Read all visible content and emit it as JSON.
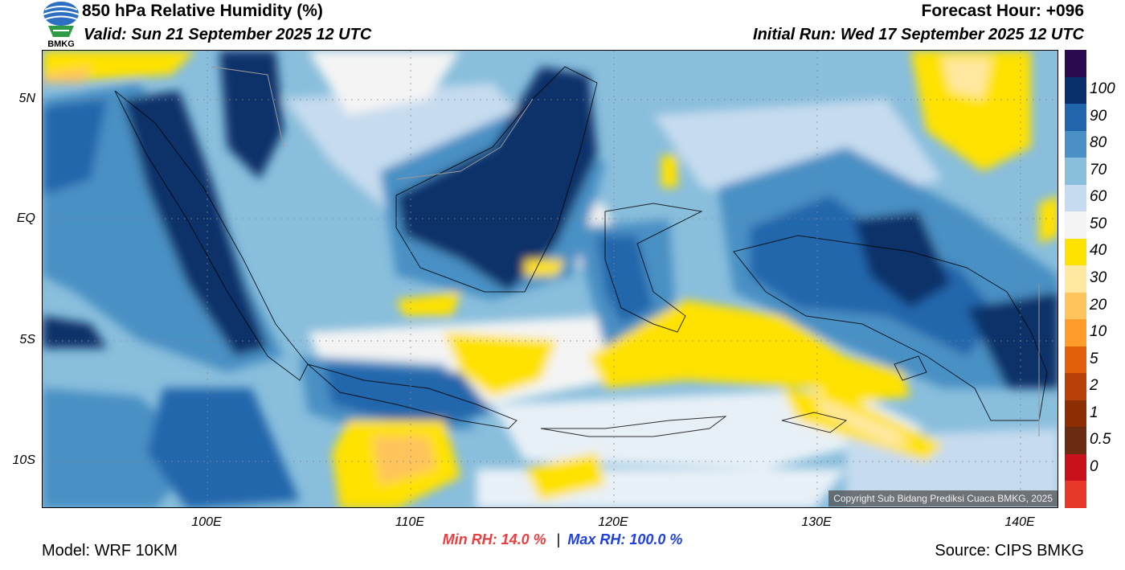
{
  "header": {
    "title": "850 hPa Relative Humidity (%)",
    "valid": "Valid: Sun 21 September 2025 12 UTC",
    "forecast_hour": "Forecast Hour: +096",
    "initial_run": "Initial Run: Wed 17 September 2025 12 UTC",
    "logo_text": "BMKG"
  },
  "map": {
    "lat_labels": [
      "5N",
      "EQ",
      "5S",
      "10S"
    ],
    "lon_labels": [
      "100E",
      "110E",
      "120E",
      "130E",
      "140E"
    ],
    "copyright": "Copyright Sub Bidang Prediksi Cuaca BMKG, 2025"
  },
  "colorbar": {
    "labels": [
      "100",
      "90",
      "80",
      "70",
      "60",
      "50",
      "40",
      "30",
      "20",
      "10",
      "5",
      "2",
      "1",
      "0.5",
      "0"
    ],
    "colors": [
      "#2b0a4f",
      "#08306b",
      "#2166ac",
      "#4a90c4",
      "#89bedc",
      "#c6dbef",
      "#f4f4f4",
      "#ffe200",
      "#ffe8a0",
      "#ffc45c",
      "#ff9c2a",
      "#e2600b",
      "#b84009",
      "#8c2d04",
      "#6b2b10",
      "#c8111a",
      "#e8382a"
    ]
  },
  "footer": {
    "model": "Model: WRF 10KM",
    "min_rh": "Min RH:  14.0 %",
    "separator": "|",
    "max_rh": "Max RH: 100.0 %",
    "source": "Source: CIPS BMKG"
  },
  "colors": {
    "min_rh": "#e84040",
    "max_rh": "#2040e0"
  }
}
